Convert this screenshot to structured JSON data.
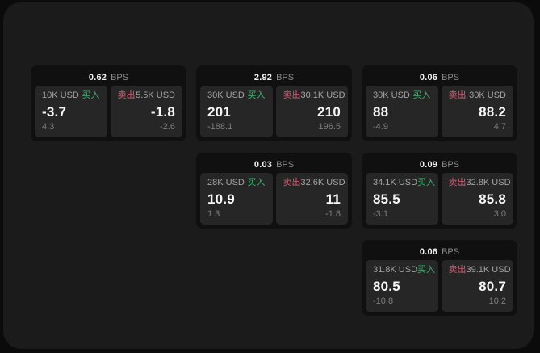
{
  "labels": {
    "bps_unit": "BPS",
    "buy": "买入",
    "sell": "卖出"
  },
  "colors": {
    "buy_green": "#3fae6e",
    "sell_red": "#d15c74",
    "window_bg": "#1b1b1b",
    "card_bg": "#101010",
    "panel_bg": "#262626"
  },
  "cards": [
    {
      "row": 1,
      "col": 1,
      "bps": "0.62",
      "buy": {
        "amount": "10K USD",
        "main": "-3.7",
        "sub": "4.3"
      },
      "sell": {
        "amount": "5.5K USD",
        "main": "-1.8",
        "sub": "-2.6"
      }
    },
    {
      "row": 1,
      "col": 2,
      "bps": "2.92",
      "buy": {
        "amount": "30K USD",
        "main": "201",
        "sub": "-188.1"
      },
      "sell": {
        "amount": "30.1K USD",
        "main": "210",
        "sub": "196.5"
      }
    },
    {
      "row": 1,
      "col": 3,
      "bps": "0.06",
      "buy": {
        "amount": "30K USD",
        "main": "88",
        "sub": "-4.9"
      },
      "sell": {
        "amount": "30K USD",
        "main": "88.2",
        "sub": "4.7"
      }
    },
    {
      "row": 2,
      "col": 2,
      "bps": "0.03",
      "buy": {
        "amount": "28K USD",
        "main": "10.9",
        "sub": "1.3"
      },
      "sell": {
        "amount": "32.6K USD",
        "main": "11",
        "sub": "-1.8"
      }
    },
    {
      "row": 2,
      "col": 3,
      "bps": "0.09",
      "buy": {
        "amount": "34.1K USD",
        "main": "85.5",
        "sub": "-3.1"
      },
      "sell": {
        "amount": "32.8K USD",
        "main": "85.8",
        "sub": "3.0"
      }
    },
    {
      "row": 3,
      "col": 3,
      "bps": "0.06",
      "buy": {
        "amount": "31.8K USD",
        "main": "80.5",
        "sub": "-10.8"
      },
      "sell": {
        "amount": "39.1K USD",
        "main": "80.7",
        "sub": "10.2"
      }
    }
  ]
}
